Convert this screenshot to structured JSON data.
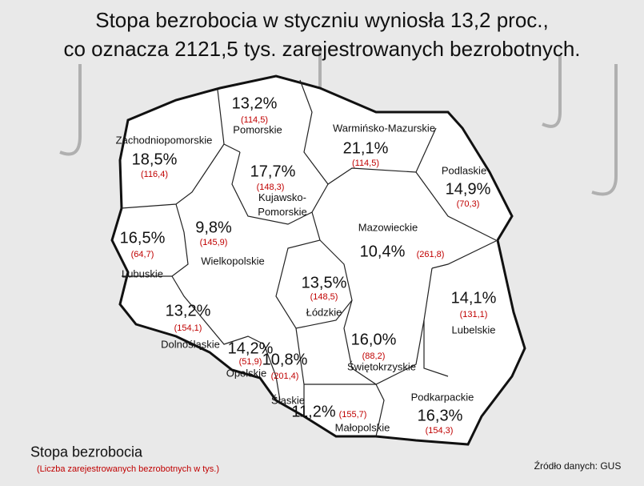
{
  "title_lines": [
    "Stopa bezrobocia w styczniu wyniosła 13,2 proc.,",
    "co oznacza 2121,5 tys. zarejestrowanych bezrobotnych."
  ],
  "regions": [
    {
      "name": "Pomorskie",
      "rate": "13,2%",
      "count": "(114,5)"
    },
    {
      "name": "Zachodniopomorskie",
      "rate": "18,5%",
      "count": "(116,4)"
    },
    {
      "name": "Warmińsko-Mazurskie",
      "rate": "21,1%",
      "count": "(114,5)"
    },
    {
      "name": "Kujawsko-Pomorskie",
      "rate": "17,7%",
      "count": "(148,3)"
    },
    {
      "name": "Podlaskie",
      "rate": "14,9%",
      "count": "(70,3)"
    },
    {
      "name": "Lubuskie",
      "rate": "16,5%",
      "count": "(64,7)"
    },
    {
      "name": "Wielkopolskie",
      "rate": "9,8%",
      "count": "(145,9)"
    },
    {
      "name": "Mazowieckie",
      "rate": "10,4%",
      "count": "(261,8)"
    },
    {
      "name": "Łódzkie",
      "rate": "13,5%",
      "count": "(148,5)"
    },
    {
      "name": "Lubelskie",
      "rate": "14,1%",
      "count": "(131,1)"
    },
    {
      "name": "Dolnośląskie",
      "rate": "13,2%",
      "count": "(154,1)"
    },
    {
      "name": "Opolskie",
      "rate": "14,2%",
      "count": "(51,9)"
    },
    {
      "name": "Śląskie",
      "rate": "10,8%",
      "count": "(201,4)"
    },
    {
      "name": "Świętokrzyskie",
      "rate": "16,0%",
      "count": "(88,2)"
    },
    {
      "name": "Małopolskie",
      "rate": "11,2%",
      "count": "(155,7)"
    },
    {
      "name": "Podkarpackie",
      "rate": "16,3%",
      "count": "(154,3)"
    }
  ],
  "legend": {
    "title": "Stopa bezrobocia",
    "subtitle": "(Liczba zarejestrowanych bezrobotnych w tys.)"
  },
  "source": "Źródło danych: GUS"
}
